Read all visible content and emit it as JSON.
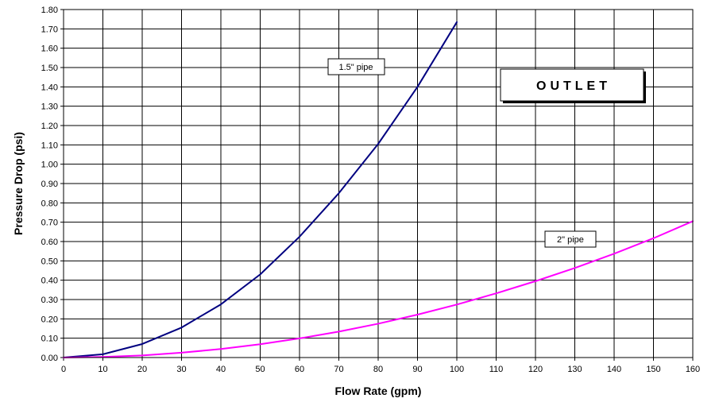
{
  "chart_data": {
    "type": "line",
    "xlabel": "Flow Rate (gpm)",
    "ylabel": "Pressure Drop (psi)",
    "xlim": [
      0,
      160
    ],
    "ylim": [
      0,
      1.8
    ],
    "x_ticks": [
      "0",
      "10",
      "20",
      "30",
      "40",
      "50",
      "60",
      "70",
      "80",
      "90",
      "100",
      "110",
      "120",
      "130",
      "140",
      "150",
      "160"
    ],
    "y_ticks": [
      "0.00",
      "0.10",
      "0.20",
      "0.30",
      "0.40",
      "0.50",
      "0.60",
      "0.70",
      "0.80",
      "0.90",
      "1.00",
      "1.10",
      "1.20",
      "1.30",
      "1.40",
      "1.50",
      "1.60",
      "1.70",
      "1.80"
    ],
    "grid": true,
    "series": [
      {
        "name": "1.5\" pipe",
        "color": "#000080",
        "x": [
          0,
          10,
          20,
          30,
          40,
          50,
          60,
          70,
          80,
          90,
          100
        ],
        "y": [
          0.0,
          0.017,
          0.07,
          0.155,
          0.275,
          0.43,
          0.625,
          0.85,
          1.105,
          1.4,
          1.735
        ]
      },
      {
        "name": "2\" pipe",
        "color": "#ff00ff",
        "x": [
          0,
          10,
          20,
          30,
          40,
          50,
          60,
          70,
          80,
          90,
          100,
          110,
          120,
          130,
          140,
          150,
          160
        ],
        "y": [
          0.0,
          0.003,
          0.011,
          0.025,
          0.044,
          0.069,
          0.099,
          0.134,
          0.175,
          0.222,
          0.274,
          0.332,
          0.395,
          0.463,
          0.537,
          0.617,
          0.705
        ]
      }
    ],
    "annotations": [
      "OUTLET"
    ]
  }
}
